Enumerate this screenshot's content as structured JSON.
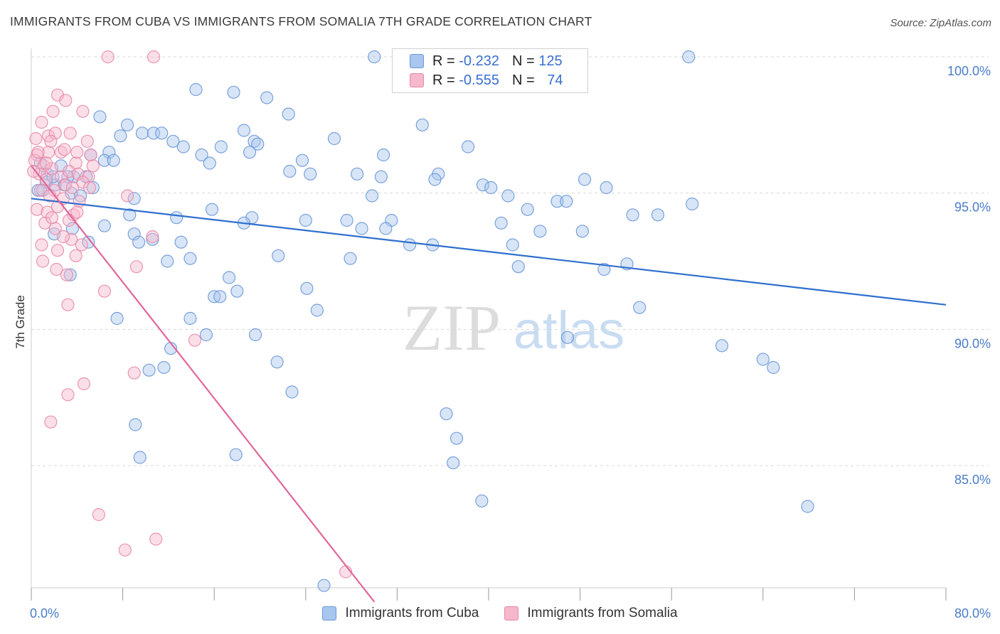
{
  "header": {
    "title": "IMMIGRANTS FROM CUBA VS IMMIGRANTS FROM SOMALIA 7TH GRADE CORRELATION CHART",
    "source": "Source: ZipAtlas.com"
  },
  "watermark": {
    "zip": "ZIP",
    "atlas": "atlas"
  },
  "legend": {
    "rows": [
      {
        "r_label": "R =",
        "r_value": "-0.232",
        "n_label": "N =",
        "n_value": "125"
      },
      {
        "r_label": "R =",
        "r_value": "-0.555",
        "n_label": "N =",
        "n_value": "74"
      }
    ]
  },
  "bottom_legend": {
    "cuba": "Immigrants from Cuba",
    "somalia": "Immigrants from Somalia"
  },
  "colors": {
    "cuba_fill": "#a8c6ee",
    "cuba_stroke": "#6a98d8",
    "cuba_line": "#2f6fcd",
    "somalia_fill": "#f6b8cb",
    "somalia_stroke": "#e88aa8",
    "somalia_line": "#e0679a",
    "grid": "#d8d8d8",
    "tick_text": "#4a7cc9"
  },
  "chart_data": {
    "type": "scatter",
    "title": "IMMIGRANTS FROM CUBA VS IMMIGRANTS FROM SOMALIA 7TH GRADE CORRELATION CHART",
    "xlabel": "",
    "ylabel": "7th Grade",
    "xlim": [
      0,
      80
    ],
    "ylim": [
      80.0,
      100.5
    ],
    "x_tick_labels": [
      "0.0%",
      "80.0%"
    ],
    "y_ticks": [
      85,
      90,
      95,
      100
    ],
    "y_tick_labels": [
      "85.0%",
      "90.0%",
      "95.0%",
      "100.0%"
    ],
    "series": [
      {
        "name": "Immigrants from Cuba",
        "R": -0.232,
        "N": 125,
        "trend": {
          "x": [
            0,
            80
          ],
          "y": [
            94.8,
            90.9
          ]
        },
        "points": [
          [
            30.0,
            100.0
          ],
          [
            57.5,
            100.0
          ],
          [
            14.4,
            98.8
          ],
          [
            17.7,
            98.7
          ],
          [
            20.6,
            98.5
          ],
          [
            22.5,
            97.9
          ],
          [
            6.0,
            97.8
          ],
          [
            8.4,
            97.5
          ],
          [
            34.2,
            97.5
          ],
          [
            18.6,
            97.3
          ],
          [
            9.7,
            97.2
          ],
          [
            10.7,
            97.2
          ],
          [
            7.8,
            97.1
          ],
          [
            11.4,
            97.2
          ],
          [
            12.4,
            96.9
          ],
          [
            19.5,
            96.9
          ],
          [
            26.5,
            97.0
          ],
          [
            38.2,
            96.7
          ],
          [
            13.3,
            96.7
          ],
          [
            16.6,
            96.7
          ],
          [
            19.8,
            96.8
          ],
          [
            5.2,
            96.4
          ],
          [
            6.8,
            96.5
          ],
          [
            14.9,
            96.4
          ],
          [
            19.1,
            96.5
          ],
          [
            23.7,
            96.2
          ],
          [
            24.4,
            95.7
          ],
          [
            30.8,
            96.4
          ],
          [
            6.4,
            96.2
          ],
          [
            7.2,
            96.2
          ],
          [
            15.6,
            96.1
          ],
          [
            22.6,
            95.8
          ],
          [
            28.5,
            95.7
          ],
          [
            30.6,
            95.6
          ],
          [
            35.6,
            95.7
          ],
          [
            1.4,
            95.7
          ],
          [
            2.6,
            96.0
          ],
          [
            3.7,
            95.6
          ],
          [
            4.8,
            95.6
          ],
          [
            1.3,
            95.4
          ],
          [
            2.1,
            95.3
          ],
          [
            3.2,
            95.6
          ],
          [
            5.4,
            95.2
          ],
          [
            0.6,
            95.1
          ],
          [
            3.5,
            95.0
          ],
          [
            35.3,
            95.5
          ],
          [
            39.5,
            95.3
          ],
          [
            40.2,
            95.2
          ],
          [
            48.4,
            95.5
          ],
          [
            50.3,
            95.2
          ],
          [
            41.7,
            94.9
          ],
          [
            29.8,
            94.9
          ],
          [
            46.0,
            94.7
          ],
          [
            46.8,
            94.7
          ],
          [
            57.8,
            94.6
          ],
          [
            9.0,
            94.8
          ],
          [
            15.8,
            94.4
          ],
          [
            43.4,
            94.4
          ],
          [
            8.6,
            94.2
          ],
          [
            12.7,
            94.1
          ],
          [
            19.3,
            94.1
          ],
          [
            24.0,
            94.0
          ],
          [
            27.6,
            94.0
          ],
          [
            31.5,
            94.0
          ],
          [
            52.6,
            94.2
          ],
          [
            54.8,
            94.2
          ],
          [
            18.6,
            93.9
          ],
          [
            28.9,
            93.7
          ],
          [
            31.0,
            93.7
          ],
          [
            41.1,
            93.9
          ],
          [
            44.5,
            93.6
          ],
          [
            48.2,
            93.6
          ],
          [
            3.6,
            93.7
          ],
          [
            9.0,
            93.5
          ],
          [
            9.4,
            93.2
          ],
          [
            13.1,
            93.2
          ],
          [
            33.1,
            93.1
          ],
          [
            35.1,
            93.1
          ],
          [
            42.1,
            93.1
          ],
          [
            5.0,
            93.2
          ],
          [
            2.0,
            93.5
          ],
          [
            21.6,
            92.7
          ],
          [
            27.9,
            92.6
          ],
          [
            42.6,
            92.3
          ],
          [
            11.9,
            92.5
          ],
          [
            13.9,
            92.6
          ],
          [
            50.1,
            92.2
          ],
          [
            52.1,
            92.4
          ],
          [
            3.4,
            92.0
          ],
          [
            17.3,
            91.9
          ],
          [
            16.0,
            91.2
          ],
          [
            16.5,
            91.2
          ],
          [
            18.0,
            91.4
          ],
          [
            24.1,
            91.5
          ],
          [
            25.0,
            90.7
          ],
          [
            53.2,
            90.8
          ],
          [
            7.5,
            90.4
          ],
          [
            13.9,
            90.4
          ],
          [
            15.3,
            89.8
          ],
          [
            19.6,
            89.8
          ],
          [
            46.9,
            89.7
          ],
          [
            60.4,
            89.4
          ],
          [
            12.2,
            89.3
          ],
          [
            64.0,
            88.9
          ],
          [
            64.9,
            88.6
          ],
          [
            10.3,
            88.5
          ],
          [
            11.6,
            88.6
          ],
          [
            21.5,
            88.8
          ],
          [
            22.8,
            87.7
          ],
          [
            36.3,
            86.9
          ],
          [
            37.2,
            86.0
          ],
          [
            9.1,
            86.5
          ],
          [
            9.5,
            85.3
          ],
          [
            17.9,
            85.4
          ],
          [
            36.9,
            85.1
          ],
          [
            39.4,
            83.7
          ],
          [
            67.9,
            83.5
          ],
          [
            25.6,
            80.6
          ],
          [
            0.8,
            96.1
          ],
          [
            1.9,
            95.6
          ],
          [
            2.9,
            95.3
          ],
          [
            4.3,
            94.9
          ],
          [
            6.4,
            93.8
          ],
          [
            10.6,
            93.3
          ],
          [
            1.0,
            95.1
          ]
        ]
      },
      {
        "name": "Immigrants from Somalia",
        "R": -0.555,
        "N": 74,
        "trend": {
          "x": [
            0,
            30.0
          ],
          "y": [
            96.0,
            80.0
          ]
        },
        "points": [
          [
            6.7,
            100.0
          ],
          [
            10.7,
            100.0
          ],
          [
            2.3,
            98.6
          ],
          [
            3.0,
            98.4
          ],
          [
            4.5,
            98.0
          ],
          [
            1.9,
            98.0
          ],
          [
            0.9,
            97.6
          ],
          [
            1.5,
            97.1
          ],
          [
            2.1,
            97.2
          ],
          [
            0.4,
            97.0
          ],
          [
            3.4,
            97.2
          ],
          [
            1.7,
            96.9
          ],
          [
            1.5,
            96.5
          ],
          [
            2.6,
            96.5
          ],
          [
            0.5,
            96.4
          ],
          [
            0.3,
            96.2
          ],
          [
            5.2,
            96.4
          ],
          [
            1.1,
            96.0
          ],
          [
            3.9,
            96.1
          ],
          [
            5.4,
            96.0
          ],
          [
            1.8,
            95.9
          ],
          [
            2.6,
            95.6
          ],
          [
            3.3,
            95.8
          ],
          [
            4.1,
            95.7
          ],
          [
            5.0,
            95.6
          ],
          [
            0.7,
            95.7
          ],
          [
            1.3,
            95.5
          ],
          [
            2.0,
            95.1
          ],
          [
            3.0,
            95.3
          ],
          [
            3.6,
            95.2
          ],
          [
            4.5,
            95.4
          ],
          [
            0.8,
            95.1
          ],
          [
            1.6,
            94.9
          ],
          [
            2.8,
            94.8
          ],
          [
            4.2,
            94.7
          ],
          [
            8.4,
            94.9
          ],
          [
            0.5,
            94.4
          ],
          [
            1.4,
            94.3
          ],
          [
            2.3,
            94.5
          ],
          [
            3.7,
            94.2
          ],
          [
            1.2,
            93.9
          ],
          [
            2.1,
            93.7
          ],
          [
            3.5,
            93.3
          ],
          [
            4.4,
            93.1
          ],
          [
            2.8,
            93.4
          ],
          [
            3.9,
            92.7
          ],
          [
            10.6,
            93.4
          ],
          [
            1.0,
            92.5
          ],
          [
            2.3,
            92.9
          ],
          [
            9.2,
            92.3
          ],
          [
            3.1,
            92.0
          ],
          [
            6.4,
            91.4
          ],
          [
            3.2,
            90.9
          ],
          [
            14.3,
            89.6
          ],
          [
            4.6,
            88.0
          ],
          [
            9.0,
            88.4
          ],
          [
            3.2,
            87.6
          ],
          [
            1.7,
            86.6
          ],
          [
            5.9,
            83.2
          ],
          [
            8.2,
            81.9
          ],
          [
            10.9,
            82.3
          ],
          [
            27.5,
            81.1
          ],
          [
            0.2,
            95.8
          ],
          [
            0.6,
            96.5
          ],
          [
            1.3,
            96.1
          ],
          [
            2.9,
            96.6
          ],
          [
            4.0,
            96.5
          ],
          [
            4.9,
            96.9
          ],
          [
            1.8,
            94.1
          ],
          [
            3.3,
            94.0
          ],
          [
            0.9,
            93.1
          ],
          [
            2.2,
            92.2
          ],
          [
            4.0,
            94.3
          ],
          [
            5.1,
            95.2
          ]
        ]
      }
    ]
  }
}
